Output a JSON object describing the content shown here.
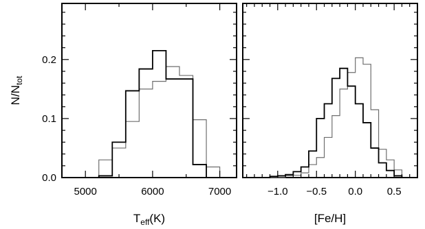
{
  "chart_data": [
    {
      "type": "histogram",
      "panel": "left",
      "xlabel_main": "T",
      "xlabel_sub": "eff",
      "xlabel_tail": "(K)",
      "ylabel_main": "N/N",
      "ylabel_sub": "tot",
      "xlim": [
        4650,
        7250
      ],
      "ylim": [
        0,
        0.295
      ],
      "x_ticks": [
        5000,
        6000,
        7000
      ],
      "y_ticks": [
        0.0,
        0.1,
        0.2
      ],
      "y_tick_labels": [
        "0.0",
        "0.1",
        "0.2"
      ],
      "bin_edges": [
        4600,
        4800,
        5000,
        5200,
        5400,
        5600,
        5800,
        6000,
        6200,
        6400,
        6600,
        6800,
        7000
      ],
      "series": [
        {
          "color": "#000000",
          "values": [
            0.0,
            0.0,
            0.0,
            0.003,
            0.06,
            0.147,
            0.184,
            0.215,
            0.167,
            0.167,
            0.022,
            0.0
          ]
        },
        {
          "color": "#6e6e6e",
          "values": [
            0.0,
            0.0,
            0.0,
            0.03,
            0.05,
            0.095,
            0.15,
            0.163,
            0.188,
            0.173,
            0.098,
            0.018
          ]
        }
      ]
    },
    {
      "type": "histogram",
      "panel": "right",
      "xlabel": "[Fe/H]",
      "xlim": [
        -1.45,
        0.8
      ],
      "ylim": [
        0,
        0.295
      ],
      "x_ticks": [
        -1.0,
        -0.5,
        0.0,
        0.5
      ],
      "x_tick_labels": [
        "−1.0",
        "−0.5",
        "0.0",
        "0.5"
      ],
      "y_ticks": [
        0.0,
        0.1,
        0.2
      ],
      "bin_edges": [
        -1.45,
        -1.3,
        -1.2,
        -1.1,
        -1.0,
        -0.9,
        -0.8,
        -0.7,
        -0.6,
        -0.5,
        -0.4,
        -0.3,
        -0.2,
        -0.1,
        0.0,
        0.1,
        0.2,
        0.3,
        0.4,
        0.5,
        0.6,
        0.7,
        0.8
      ],
      "series": [
        {
          "color": "#000000",
          "values": [
            0.0,
            0.0,
            0.0,
            0.002,
            0.003,
            0.005,
            0.01,
            0.018,
            0.045,
            0.1,
            0.125,
            0.168,
            0.185,
            0.155,
            0.125,
            0.093,
            0.05,
            0.025,
            0.012,
            0.003,
            0.0,
            0.0
          ]
        },
        {
          "color": "#6e6e6e",
          "values": [
            0.0,
            0.0,
            0.0,
            0.0,
            0.0,
            0.003,
            0.004,
            0.008,
            0.022,
            0.034,
            0.068,
            0.105,
            0.15,
            0.178,
            0.203,
            0.192,
            0.115,
            0.048,
            0.03,
            0.013,
            0.0,
            0.0
          ]
        }
      ]
    }
  ]
}
